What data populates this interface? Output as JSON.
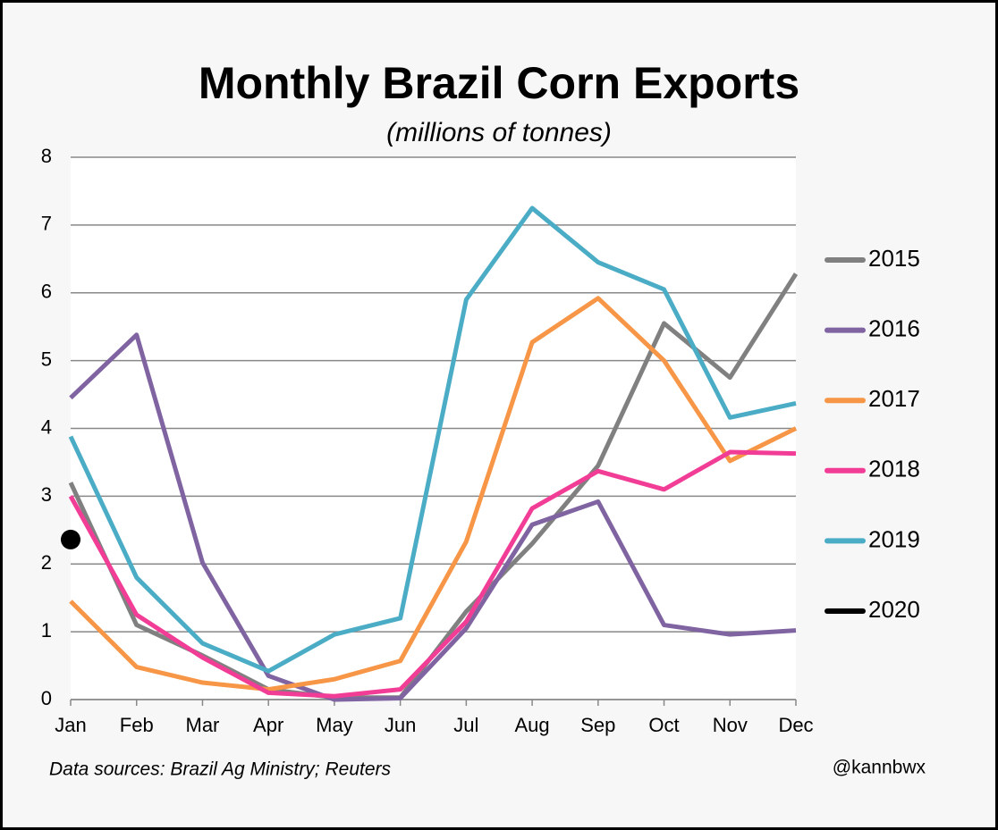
{
  "chart_data": {
    "type": "line",
    "title": "Monthly Brazil Corn Exports",
    "subtitle": "(millions of tonnes)",
    "source": "Data sources: Brazil Ag Ministry; Reuters",
    "credit": "@kannbwx",
    "categories": [
      "Jan",
      "Feb",
      "Mar",
      "Apr",
      "May",
      "Jun",
      "Jul",
      "Aug",
      "Sep",
      "Oct",
      "Nov",
      "Dec"
    ],
    "series": [
      {
        "name": "2015",
        "color": "#808080",
        "values": [
          3.2,
          1.1,
          0.65,
          0.15,
          0.03,
          0.03,
          1.3,
          2.3,
          3.45,
          5.55,
          4.75,
          6.28
        ]
      },
      {
        "name": "2016",
        "color": "#8064a2",
        "values": [
          4.45,
          5.38,
          2.02,
          0.35,
          0.0,
          0.02,
          1.05,
          2.58,
          2.92,
          1.1,
          0.96,
          1.02
        ]
      },
      {
        "name": "2017",
        "color": "#f79646",
        "values": [
          1.45,
          0.48,
          0.25,
          0.15,
          0.3,
          0.57,
          2.33,
          5.27,
          5.92,
          5.0,
          3.52,
          4.0
        ]
      },
      {
        "name": "2018",
        "color": "#f23d96",
        "values": [
          3.0,
          1.25,
          0.62,
          0.1,
          0.05,
          0.15,
          1.15,
          2.82,
          3.37,
          3.1,
          3.65,
          3.63
        ]
      },
      {
        "name": "2019",
        "color": "#4bacc6",
        "values": [
          3.88,
          1.8,
          0.83,
          0.42,
          0.96,
          1.2,
          5.9,
          7.25,
          6.45,
          6.05,
          4.16,
          4.37
        ]
      },
      {
        "name": "2020",
        "color": "#000000",
        "values": [
          2.36,
          null,
          null,
          null,
          null,
          null,
          null,
          null,
          null,
          null,
          null,
          null
        ]
      }
    ],
    "ylim": [
      0,
      8
    ],
    "yticks": [
      0,
      1,
      2,
      3,
      4,
      5,
      6,
      7,
      8
    ],
    "grid": true,
    "legend": "right"
  }
}
